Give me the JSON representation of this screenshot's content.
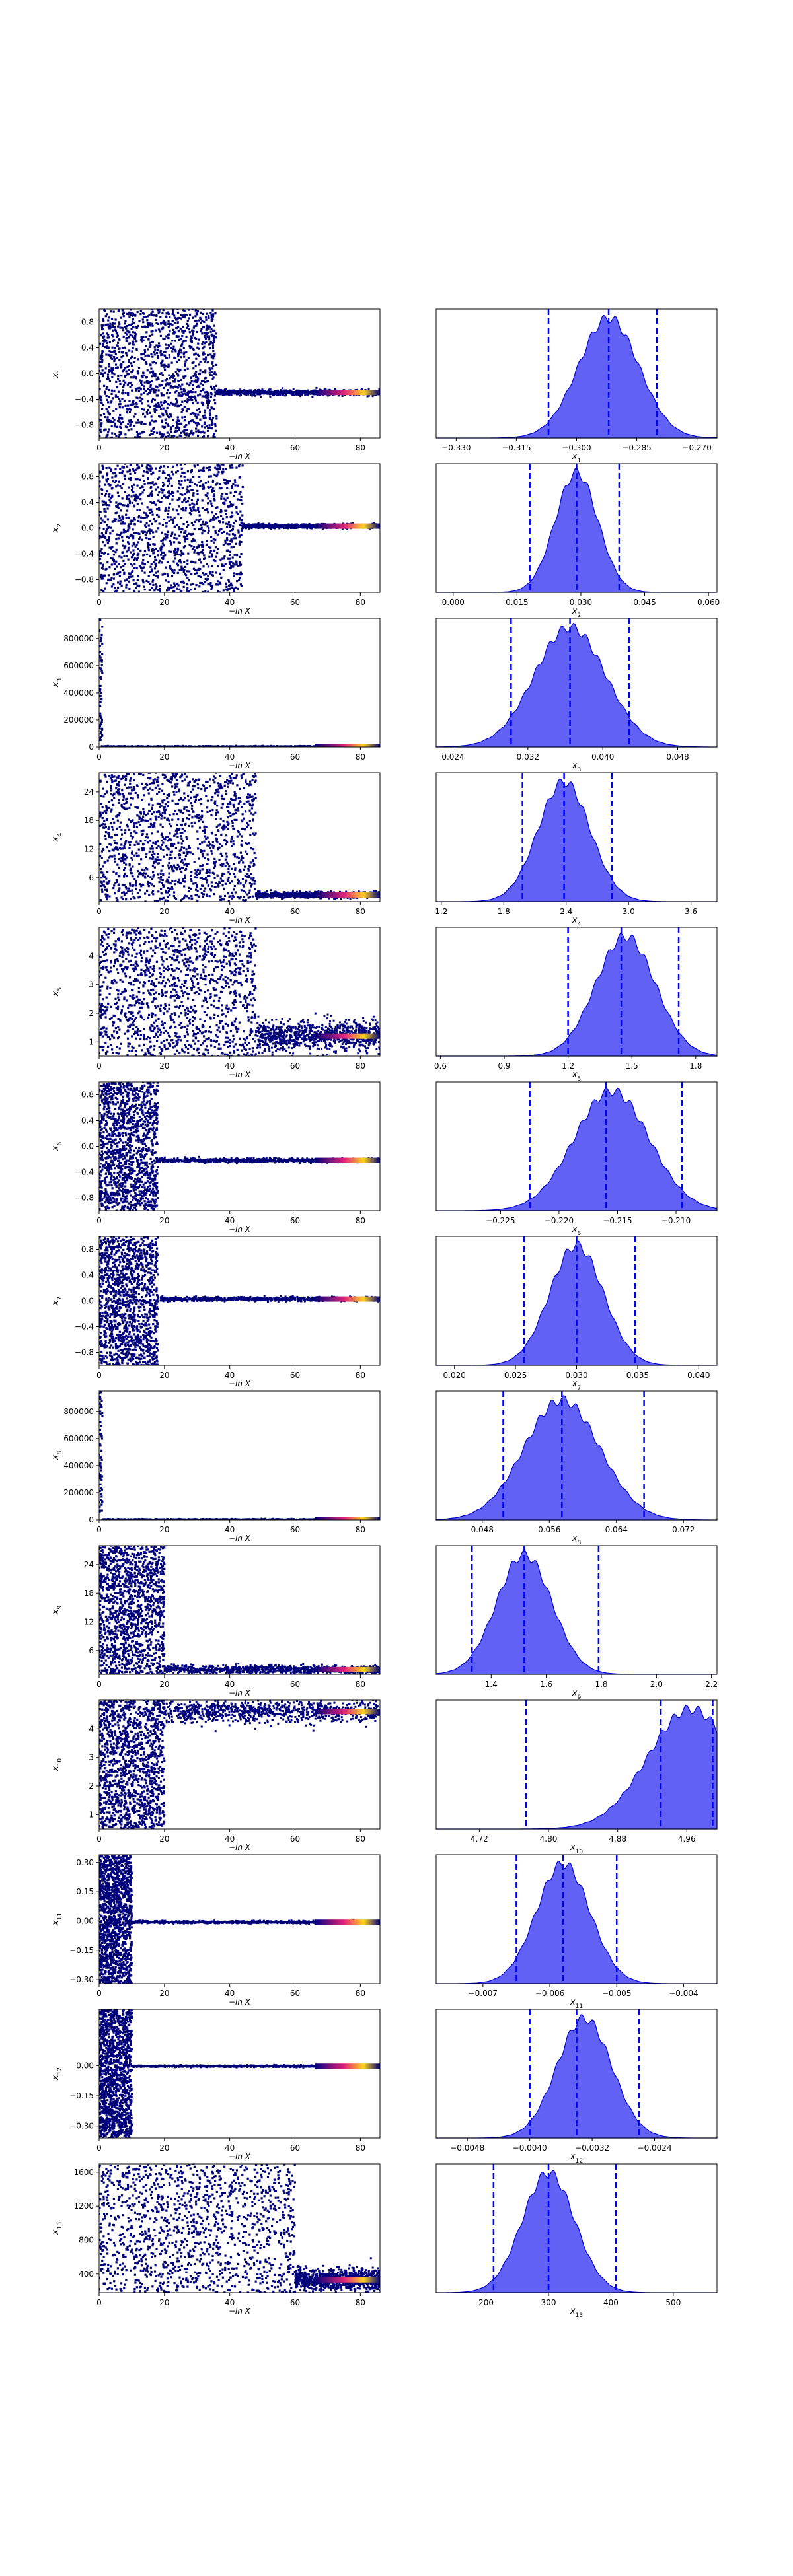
{
  "figure": {
    "trace_xlabel": "−ln X",
    "colors": {
      "trace": "#00007a",
      "hot_mid": "#e0227a",
      "hot_end": "#ffd21e",
      "hist_fill": "#5858f5",
      "hist_edge": "#0000c8",
      "quantile_line": "#0000ff"
    }
  },
  "chart_data": [
    {
      "type": "scatter",
      "ylabel": "x1",
      "xlim": [
        0,
        86
      ],
      "xticks": [
        0,
        20,
        40,
        60,
        80
      ],
      "ylim": [
        -1.0,
        1.0
      ],
      "yticks": [
        "0.8",
        "0.4",
        "0.0",
        "−0.4",
        "−0.8"
      ],
      "ytick_values": [
        0.8,
        0.4,
        0.0,
        -0.4,
        -0.8
      ],
      "scatter_end": 36,
      "band_center": -0.295,
      "band_width": 0.04
    },
    {
      "type": "area",
      "xlabel": "x1",
      "xlim": [
        -0.335,
        -0.265
      ],
      "xticks": [
        "−0.330",
        "−0.315",
        "−0.300",
        "−0.285",
        "−0.270"
      ],
      "xtick_values": [
        -0.33,
        -0.315,
        -0.3,
        -0.285,
        -0.27
      ],
      "peak": -0.292,
      "sigma": 0.0075,
      "quantiles": [
        -0.307,
        -0.292,
        -0.28
      ]
    },
    {
      "type": "scatter",
      "ylabel": "x2",
      "xlim": [
        0,
        86
      ],
      "xticks": [
        0,
        20,
        40,
        60,
        80
      ],
      "ylim": [
        -1.0,
        1.0
      ],
      "yticks": [
        "0.8",
        "0.4",
        "0.0",
        "−0.4",
        "−0.8"
      ],
      "ytick_values": [
        0.8,
        0.4,
        0.0,
        -0.4,
        -0.8
      ],
      "scatter_end": 44,
      "band_center": 0.03,
      "band_width": 0.03
    },
    {
      "type": "area",
      "xlabel": "x2",
      "xlim": [
        -0.004,
        0.062
      ],
      "xticks": [
        "0.000",
        "0.015",
        "0.030",
        "0.045",
        "0.060"
      ],
      "xtick_values": [
        0.0,
        0.015,
        0.03,
        0.045,
        0.06
      ],
      "peak": 0.029,
      "sigma": 0.005,
      "quantiles": [
        0.018,
        0.029,
        0.039
      ]
    },
    {
      "type": "scatter",
      "ylabel": "x3",
      "xlim": [
        0,
        86
      ],
      "xticks": [
        0,
        20,
        40,
        60,
        80
      ],
      "ylim": [
        0,
        950000
      ],
      "yticks": [
        "800000",
        "600000",
        "400000",
        "200000",
        "0"
      ],
      "ytick_values": [
        800000,
        600000,
        400000,
        200000,
        0
      ],
      "scatter_end": 1,
      "band_center": 3000,
      "band_width": 4000
    },
    {
      "type": "area",
      "xlabel": "x3",
      "xlim": [
        0.0222,
        0.0522
      ],
      "xticks": [
        "0.024",
        "0.032",
        "0.040",
        "0.048"
      ],
      "xtick_values": [
        0.024,
        0.032,
        0.04,
        0.048
      ],
      "peak": 0.0365,
      "sigma": 0.0038,
      "quantiles": [
        0.0302,
        0.0365,
        0.0428
      ]
    },
    {
      "type": "scatter",
      "ylabel": "x4",
      "xlim": [
        0,
        86
      ],
      "xticks": [
        0,
        20,
        40,
        60,
        80
      ],
      "ylim": [
        1,
        28
      ],
      "yticks": [
        "24",
        "18",
        "12",
        "6"
      ],
      "ytick_values": [
        24,
        18,
        12,
        6
      ],
      "scatter_end": 48,
      "band_center": 2.4,
      "band_width": 0.6
    },
    {
      "type": "area",
      "xlabel": "x4",
      "xlim": [
        1.15,
        3.85
      ],
      "xticks": [
        "1.2",
        "1.8",
        "2.4",
        "3.0",
        "3.6"
      ],
      "xtick_values": [
        1.2,
        1.8,
        2.4,
        3.0,
        3.6
      ],
      "peak": 2.38,
      "sigma": 0.25,
      "quantiles": [
        1.98,
        2.38,
        2.84
      ]
    },
    {
      "type": "scatter",
      "ylabel": "x5",
      "xlim": [
        0,
        86
      ],
      "xticks": [
        0,
        20,
        40,
        60,
        80
      ],
      "ylim": [
        0.5,
        5.0
      ],
      "yticks": [
        "4",
        "3",
        "2",
        "1"
      ],
      "ytick_values": [
        4,
        3,
        2,
        1
      ],
      "scatter_end": 48,
      "band_center": 1.2,
      "band_width": 0.5
    },
    {
      "type": "area",
      "xlabel": "x5",
      "xlim": [
        0.58,
        1.9
      ],
      "xticks": [
        "0.6",
        "0.9",
        "1.2",
        "1.5",
        "1.8"
      ],
      "xtick_values": [
        0.6,
        0.9,
        1.2,
        1.5,
        1.8
      ],
      "peak": 1.47,
      "sigma": 0.14,
      "quantiles": [
        1.2,
        1.45,
        1.72
      ]
    },
    {
      "type": "scatter",
      "ylabel": "x6",
      "xlim": [
        0,
        86
      ],
      "xticks": [
        0,
        20,
        40,
        60,
        80
      ],
      "ylim": [
        -1.0,
        1.0
      ],
      "yticks": [
        "0.8",
        "0.4",
        "0.0",
        "−0.4",
        "−0.8"
      ],
      "ytick_values": [
        0.8,
        0.4,
        0.0,
        -0.4,
        -0.8
      ],
      "scatter_end": 18,
      "band_center": -0.216,
      "band_width": 0.03
    },
    {
      "type": "area",
      "xlabel": "x6",
      "xlim": [
        -0.2305,
        -0.2065
      ],
      "xticks": [
        "−0.225",
        "−0.220",
        "−0.215",
        "−0.210"
      ],
      "xtick_values": [
        -0.225,
        -0.22,
        -0.215,
        -0.21
      ],
      "peak": -0.2155,
      "sigma": 0.0032,
      "quantiles": [
        -0.2225,
        -0.216,
        -0.2095
      ]
    },
    {
      "type": "scatter",
      "ylabel": "x7",
      "xlim": [
        0,
        86
      ],
      "xticks": [
        0,
        20,
        40,
        60,
        80
      ],
      "ylim": [
        -1.0,
        1.0
      ],
      "yticks": [
        "0.8",
        "0.4",
        "0.0",
        "−0.4",
        "−0.8"
      ],
      "ytick_values": [
        0.8,
        0.4,
        0.0,
        -0.4,
        -0.8
      ],
      "scatter_end": 18,
      "band_center": 0.03,
      "band_width": 0.03
    },
    {
      "type": "area",
      "xlabel": "x7",
      "xlim": [
        0.0185,
        0.0415
      ],
      "xticks": [
        "0.020",
        "0.025",
        "0.030",
        "0.035",
        "0.040"
      ],
      "xtick_values": [
        0.02,
        0.025,
        0.03,
        0.035,
        0.04
      ],
      "peak": 0.03,
      "sigma": 0.0022,
      "quantiles": [
        0.0257,
        0.03,
        0.0348
      ]
    },
    {
      "type": "scatter",
      "ylabel": "x8",
      "xlim": [
        0,
        86
      ],
      "xticks": [
        0,
        20,
        40,
        60,
        80
      ],
      "ylim": [
        0,
        950000
      ],
      "yticks": [
        "800000",
        "600000",
        "400000",
        "200000",
        "0"
      ],
      "ytick_values": [
        800000,
        600000,
        400000,
        200000,
        0
      ],
      "scatter_end": 1,
      "band_center": 3000,
      "band_width": 4000
    },
    {
      "type": "area",
      "xlabel": "x8",
      "xlim": [
        0.0425,
        0.076
      ],
      "xticks": [
        "0.048",
        "0.056",
        "0.064",
        "0.072"
      ],
      "xtick_values": [
        0.048,
        0.056,
        0.064,
        0.072
      ],
      "peak": 0.0575,
      "sigma": 0.0045,
      "quantiles": [
        0.0505,
        0.0575,
        0.0673
      ]
    },
    {
      "type": "scatter",
      "ylabel": "x9",
      "xlim": [
        0,
        86
      ],
      "xticks": [
        0,
        20,
        40,
        60,
        80
      ],
      "ylim": [
        1,
        28
      ],
      "yticks": [
        "24",
        "18",
        "12",
        "6"
      ],
      "ytick_values": [
        24,
        18,
        12,
        6
      ],
      "scatter_end": 20,
      "band_center": 2.0,
      "band_width": 0.8
    },
    {
      "type": "area",
      "xlabel": "x9",
      "xlim": [
        1.2,
        2.22
      ],
      "xticks": [
        "1.4",
        "1.6",
        "1.8",
        "2.0",
        "2.2"
      ],
      "xtick_values": [
        1.4,
        1.6,
        1.8,
        2.0,
        2.2
      ],
      "peak": 1.52,
      "sigma": 0.1,
      "quantiles": [
        1.33,
        1.52,
        1.79
      ]
    },
    {
      "type": "scatter",
      "ylabel": "x10",
      "xlim": [
        0,
        86
      ],
      "xticks": [
        0,
        20,
        40,
        60,
        80
      ],
      "ylim": [
        0.5,
        5.0
      ],
      "yticks": [
        "4",
        "3",
        "2",
        "1"
      ],
      "ytick_values": [
        4,
        3,
        2,
        1
      ],
      "scatter_end": 20,
      "band_center": 4.6,
      "band_width": 0.4
    },
    {
      "type": "area",
      "xlabel": "x10",
      "xlim": [
        4.67,
        4.995
      ],
      "xticks": [
        "4.72",
        "4.80",
        "4.88",
        "4.96"
      ],
      "xtick_values": [
        4.72,
        4.8,
        4.88,
        4.96
      ],
      "peak": 4.965,
      "sigma": 0.05,
      "quantiles": [
        4.774,
        4.93,
        4.99
      ]
    },
    {
      "type": "scatter",
      "ylabel": "x11",
      "xlim": [
        0,
        86
      ],
      "xticks": [
        0,
        20,
        40,
        60,
        80
      ],
      "ylim": [
        -0.32,
        0.34
      ],
      "yticks": [
        "0.30",
        "0.15",
        "0.00",
        "−0.15",
        "−0.30"
      ],
      "ytick_values": [
        0.3,
        0.15,
        0.0,
        -0.15,
        -0.3
      ],
      "scatter_end": 10,
      "band_center": -0.006,
      "band_width": 0.006
    },
    {
      "type": "area",
      "xlabel": "x11",
      "xlim": [
        -0.0077,
        -0.0035
      ],
      "xticks": [
        "−0.007",
        "−0.006",
        "−0.005",
        "−0.004"
      ],
      "xtick_values": [
        -0.007,
        -0.006,
        -0.005,
        -0.004
      ],
      "peak": -0.0058,
      "sigma": 0.0004,
      "quantiles": [
        -0.0065,
        -0.0058,
        -0.005
      ]
    },
    {
      "type": "scatter",
      "ylabel": "x12",
      "xlim": [
        0,
        86
      ],
      "xticks": [
        0,
        20,
        40,
        60,
        80
      ],
      "ylim": [
        -0.36,
        0.28
      ],
      "yticks": [
        "0.00",
        "−0.15",
        "−0.30"
      ],
      "ytick_values": [
        0.0,
        -0.15,
        -0.3
      ],
      "scatter_end": 10,
      "band_center": -0.003,
      "band_width": 0.004
    },
    {
      "type": "area",
      "xlabel": "x12",
      "xlim": [
        -0.0052,
        -0.0016
      ],
      "xticks": [
        "−0.0048",
        "−0.0040",
        "−0.0032",
        "−0.0024"
      ],
      "xtick_values": [
        -0.0048,
        -0.004,
        -0.0032,
        -0.0024
      ],
      "peak": -0.0033,
      "sigma": 0.00035,
      "quantiles": [
        -0.004,
        -0.0034,
        -0.0026
      ]
    },
    {
      "type": "scatter",
      "ylabel": "x13",
      "xlim": [
        0,
        86
      ],
      "xticks": [
        0,
        20,
        40,
        60,
        80
      ],
      "ylim": [
        180,
        1700
      ],
      "yticks": [
        "1600",
        "1200",
        "800",
        "400"
      ],
      "ytick_values": [
        1600,
        1200,
        800,
        400
      ],
      "scatter_end": 60,
      "band_center": 330,
      "band_width": 120
    },
    {
      "type": "area",
      "xlabel": "x13",
      "xlim": [
        120,
        570
      ],
      "xticks": [
        "200",
        "300",
        "400",
        "500"
      ],
      "xtick_values": [
        200,
        300,
        400,
        500
      ],
      "peak": 300,
      "sigma": 42,
      "quantiles": [
        212,
        300,
        408
      ]
    }
  ]
}
